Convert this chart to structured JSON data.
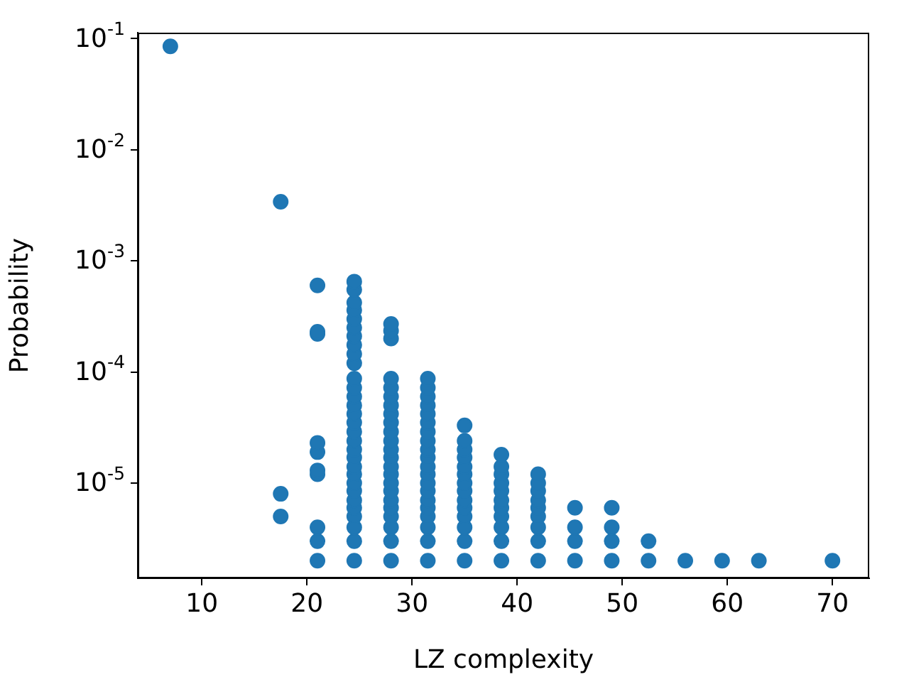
{
  "chart_data": {
    "type": "scatter",
    "xlabel": "LZ complexity",
    "ylabel": "Probability",
    "log": "y",
    "grid": false,
    "legend": false,
    "marker": "circle",
    "xlim": [
      3.9,
      73.5
    ],
    "xticks": [
      10,
      20,
      30,
      40,
      50,
      60,
      70
    ],
    "ylim": [
      1.39e-06,
      0.113
    ],
    "yticks": [
      {
        "value": 1e-05,
        "label": "10$^{-5}$"
      },
      {
        "value": 0.0001,
        "label": "10$^{-4}$"
      },
      {
        "value": 0.001,
        "label": "10$^{-3}$"
      },
      {
        "value": 0.01,
        "label": "10$^{-2}$"
      },
      {
        "value": 0.1,
        "label": "10$^{-1}$"
      }
    ],
    "series": [
      {
        "color": "#1f77b4",
        "x": [
          7,
          17.5,
          17.5,
          17.5,
          21,
          21,
          21,
          21,
          21,
          21,
          21,
          21,
          21,
          21,
          24.5,
          24.5,
          24.5,
          24.5,
          24.5,
          24.5,
          24.5,
          24.5,
          24.5,
          24.5,
          24.5,
          24.5,
          24.5,
          24.5,
          24.5,
          24.5,
          24.5,
          24.5,
          24.5,
          24.5,
          24.5,
          24.5,
          24.5,
          24.5,
          24.5,
          24.5,
          24.5,
          24.5,
          24.5,
          24.5,
          28,
          28,
          28,
          28,
          28,
          28,
          28,
          28,
          28,
          28,
          28,
          28,
          28,
          28,
          28,
          28,
          28,
          28,
          28,
          28,
          28,
          28,
          28,
          31.5,
          31.5,
          31.5,
          31.5,
          31.5,
          31.5,
          31.5,
          31.5,
          31.5,
          31.5,
          31.5,
          31.5,
          31.5,
          31.5,
          31.5,
          31.5,
          31.5,
          31.5,
          31.5,
          31.5,
          35,
          35,
          35,
          35,
          35,
          35,
          35,
          35,
          35,
          35,
          35,
          35,
          35,
          35,
          38.5,
          38.5,
          38.5,
          38.5,
          38.5,
          38.5,
          38.5,
          38.5,
          38.5,
          38.5,
          38.5,
          42,
          42,
          42,
          42,
          42,
          42,
          42,
          42,
          42,
          45.5,
          45.5,
          45.5,
          45.5,
          49,
          49,
          49,
          49,
          52.5,
          52.5,
          56,
          59.5,
          63,
          70
        ],
        "values": [
          0.085,
          5e-06,
          8e-06,
          0.0034,
          2e-06,
          3e-06,
          4e-06,
          1.2e-05,
          1.3e-05,
          1.9e-05,
          2.3e-05,
          0.00022,
          0.00023,
          0.0006,
          2e-06,
          3e-06,
          4e-06,
          5e-06,
          6e-06,
          7e-06,
          8.5e-06,
          1e-05,
          1.2e-05,
          1.4e-05,
          1.7e-05,
          2e-05,
          2.4e-05,
          2.9e-05,
          3.5e-05,
          4.2e-05,
          5e-05,
          6e-05,
          7.2e-05,
          8.7e-05,
          0.00012,
          0.000145,
          0.000175,
          0.00021,
          0.00025,
          0.0003,
          0.00036,
          0.00042,
          0.00055,
          0.00065,
          2e-06,
          3e-06,
          4e-06,
          5e-06,
          6e-06,
          7e-06,
          8.5e-06,
          1e-05,
          1.2e-05,
          1.4e-05,
          1.7e-05,
          2e-05,
          2.4e-05,
          2.9e-05,
          3.5e-05,
          4.2e-05,
          5e-05,
          6e-05,
          7.2e-05,
          8.7e-05,
          0.0002,
          0.000235,
          0.00027,
          2e-06,
          3e-06,
          4e-06,
          5e-06,
          6e-06,
          7e-06,
          8.5e-06,
          1e-05,
          1.2e-05,
          1.4e-05,
          1.7e-05,
          2e-05,
          2.4e-05,
          2.9e-05,
          3.5e-05,
          4.2e-05,
          5e-05,
          6e-05,
          7.2e-05,
          8.7e-05,
          2e-06,
          3e-06,
          4e-06,
          5e-06,
          6e-06,
          7e-06,
          8.5e-06,
          1e-05,
          1.2e-05,
          1.4e-05,
          1.7e-05,
          2e-05,
          2.4e-05,
          3.3e-05,
          2e-06,
          3e-06,
          4e-06,
          5e-06,
          6e-06,
          7e-06,
          8.5e-06,
          1e-05,
          1.2e-05,
          1.4e-05,
          1.8e-05,
          2e-06,
          3e-06,
          4e-06,
          5e-06,
          6e-06,
          7e-06,
          8.5e-06,
          1e-05,
          1.2e-05,
          2e-06,
          3e-06,
          4e-06,
          6e-06,
          2e-06,
          3e-06,
          4e-06,
          6e-06,
          2e-06,
          3e-06,
          2e-06,
          2e-06,
          2e-06,
          2e-06
        ]
      }
    ]
  }
}
